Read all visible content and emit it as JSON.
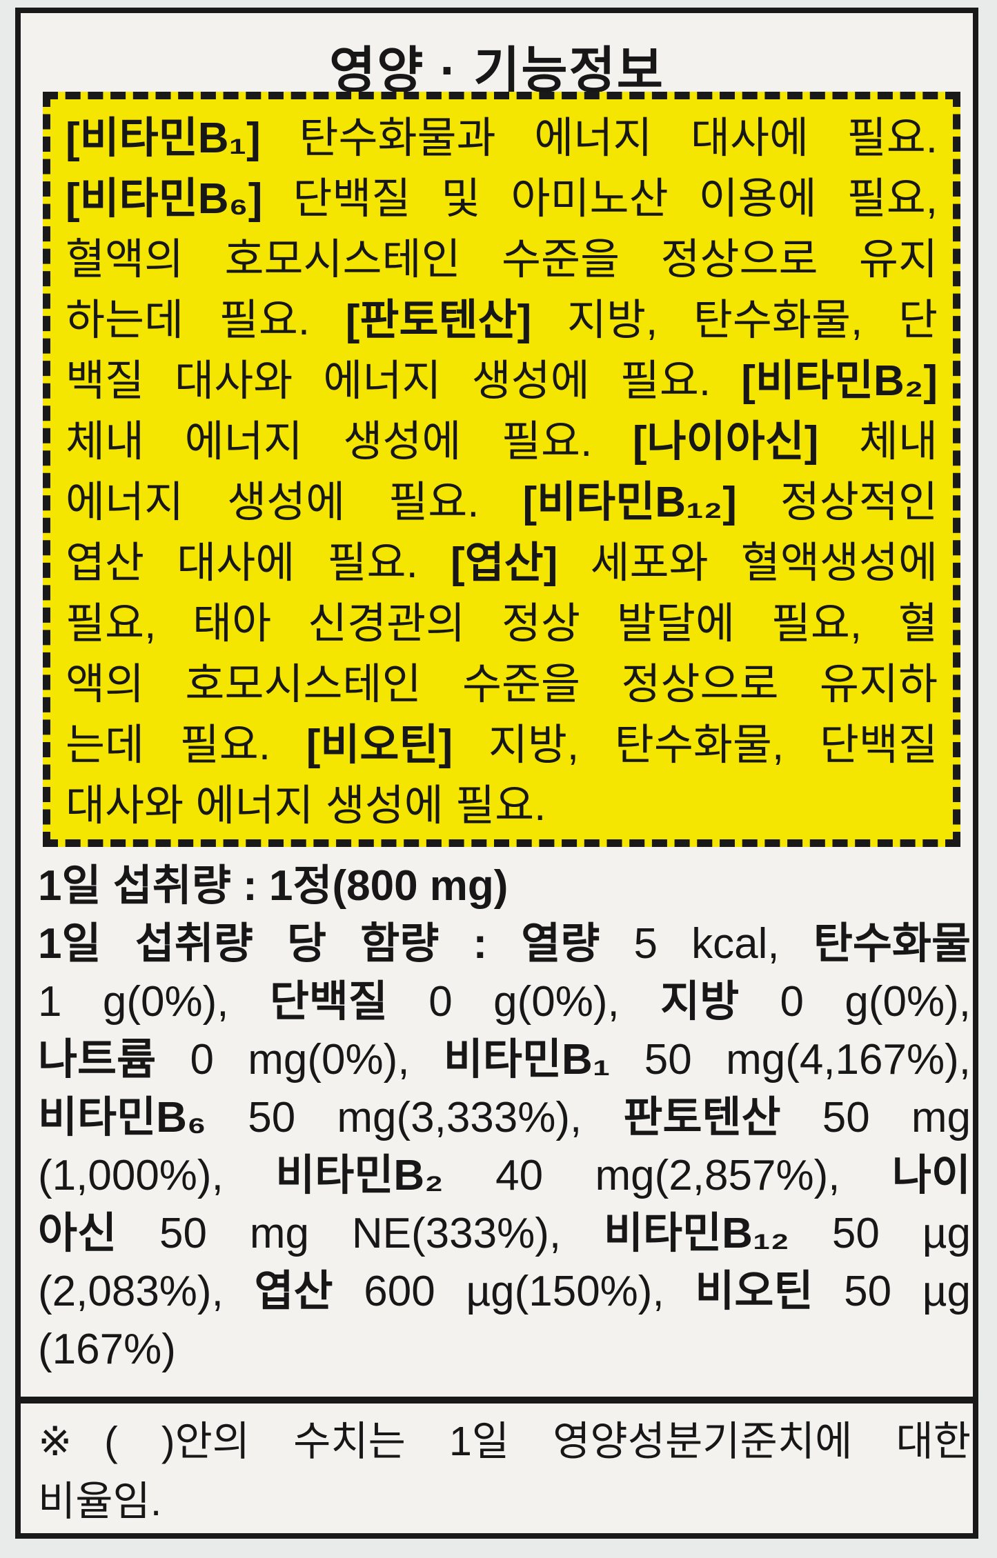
{
  "title": "영양 · 기능정보",
  "colors": {
    "highlight_yellow": "#f4e600",
    "label_background": "#f3f2ef",
    "page_background": "#e8ebea",
    "text_black": "#171717",
    "frame_black": "#191919"
  },
  "functional_info": {
    "lines": [
      [
        {
          "t": "[비타민B₁]",
          "b": true
        },
        {
          "t": " 탄수화물과 에너지 대사에 필요."
        }
      ],
      [
        {
          "t": "[비타민B₆]",
          "b": true
        },
        {
          "t": " 단백질 및 아미노산 이용에 필요,"
        }
      ],
      [
        {
          "t": "혈액의 호모시스테인 수준을 정상으로 유지"
        }
      ],
      [
        {
          "t": "하는데 필요. "
        },
        {
          "t": "[판토텐산]",
          "b": true
        },
        {
          "t": " 지방, 탄수화물, 단"
        }
      ],
      [
        {
          "t": "백질 대사와 에너지 생성에 필요. "
        },
        {
          "t": "[비타민B₂]",
          "b": true
        }
      ],
      [
        {
          "t": "체내 에너지 생성에 필요. "
        },
        {
          "t": "[나이아신]",
          "b": true
        },
        {
          "t": " 체내"
        }
      ],
      [
        {
          "t": "에너지 생성에 필요. "
        },
        {
          "t": "[비타민B₁₂]",
          "b": true
        },
        {
          "t": " 정상적인"
        }
      ],
      [
        {
          "t": "엽산 대사에 필요. "
        },
        {
          "t": "[엽산]",
          "b": true
        },
        {
          "t": " 세포와 혈액생성에"
        }
      ],
      [
        {
          "t": "필요, 태아 신경관의 정상 발달에 필요, 혈"
        }
      ],
      [
        {
          "t": "액의 호모시스테인 수준을 정상으로 유지하"
        }
      ],
      [
        {
          "t": "는데 필요. "
        },
        {
          "t": "[비오틴]",
          "b": true
        },
        {
          "t": " 지방, 탄수화물, 단백질"
        }
      ],
      [
        {
          "t": "대사와 에너지 생성에 필요."
        }
      ]
    ]
  },
  "daily_intake": {
    "lines": [
      [
        {
          "t": "1일 섭취량 : 1정(800 mg)",
          "b": true
        }
      ]
    ]
  },
  "composition": {
    "lines": [
      [
        {
          "t": "1일 섭취량 당 함량 : 열량",
          "b": true
        },
        {
          "t": " 5 kcal, "
        },
        {
          "t": "탄수화물",
          "b": true
        }
      ],
      [
        {
          "t": "1 g(0%), "
        },
        {
          "t": "단백질",
          "b": true
        },
        {
          "t": " 0 g(0%), "
        },
        {
          "t": "지방",
          "b": true
        },
        {
          "t": " 0 g(0%),"
        }
      ],
      [
        {
          "t": "나트륨",
          "b": true
        },
        {
          "t": " 0 mg(0%), "
        },
        {
          "t": "비타민B₁",
          "b": true
        },
        {
          "t": " 50 mg(4,167%),"
        }
      ],
      [
        {
          "t": "비타민B₆",
          "b": true
        },
        {
          "t": " 50 mg(3,333%), "
        },
        {
          "t": "판토텐산",
          "b": true
        },
        {
          "t": " 50 mg"
        }
      ],
      [
        {
          "t": "(1,000%), "
        },
        {
          "t": "비타민B₂",
          "b": true
        },
        {
          "t": " 40 mg(2,857%), "
        },
        {
          "t": "나이",
          "b": true
        }
      ],
      [
        {
          "t": "아신",
          "b": true
        },
        {
          "t": " 50 mg NE(333%), "
        },
        {
          "t": "비타민B₁₂",
          "b": true
        },
        {
          "t": " 50 µg"
        }
      ],
      [
        {
          "t": "(2,083%), "
        },
        {
          "t": "엽산",
          "b": true
        },
        {
          "t": " 600 µg(150%), "
        },
        {
          "t": "비오틴",
          "b": true
        },
        {
          "t": " 50 µg"
        }
      ],
      [
        {
          "t": "(167%)"
        }
      ]
    ]
  },
  "footnote": {
    "lines": [
      [
        {
          "t": "※( )안의 수치는 1일 영양성분기준치에 대한"
        }
      ],
      [
        {
          "t": "비율임."
        }
      ]
    ]
  }
}
